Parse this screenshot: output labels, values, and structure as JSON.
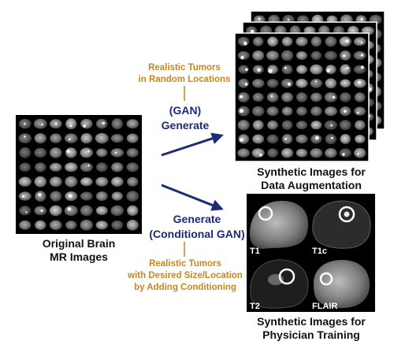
{
  "original": {
    "caption_line1": "Original Brain",
    "caption_line2": "MR Images"
  },
  "gan": {
    "note_line1": "Realistic Tumors",
    "note_line2": "in Random Locations",
    "label_line1": "(GAN)",
    "label_line2": "Generate"
  },
  "cgan": {
    "label_line1": "Generate",
    "label_line2": "(Conditional GAN)",
    "note_line1": "Realistic Tumors",
    "note_line2": "with Desired Size/Location",
    "note_line3": "by Adding Conditioning"
  },
  "augmentation": {
    "caption_line1": "Synthetic Images for",
    "caption_line2": "Data Augmentation"
  },
  "training": {
    "caption_line1": "Synthetic Images for",
    "caption_line2": "Physician Training",
    "panels": [
      {
        "label": "T1"
      },
      {
        "label": "T1c"
      },
      {
        "label": "T2"
      },
      {
        "label": "FLAIR"
      }
    ]
  },
  "colors": {
    "accent_orange": "#c8861f",
    "arrow_navy": "#1d2a78",
    "tumor_ring": "#ffffff"
  }
}
